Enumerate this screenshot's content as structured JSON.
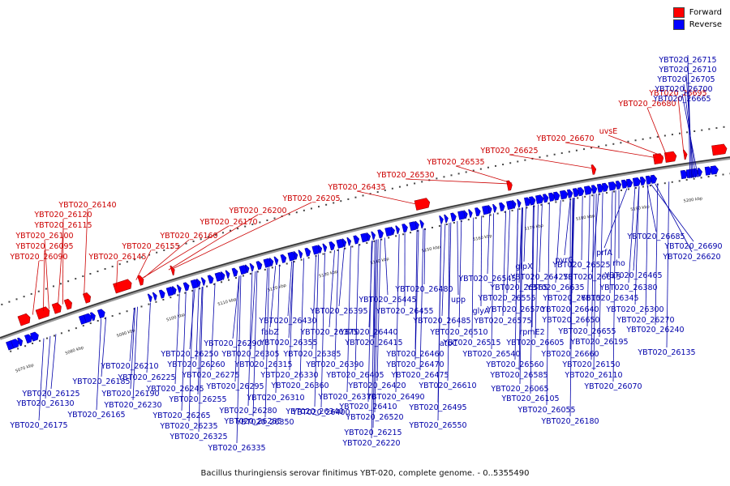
{
  "legend": {
    "forward": {
      "label": "Forward",
      "color": "#ff0000"
    },
    "reverse": {
      "label": "Reverse",
      "color": "#0000ff"
    }
  },
  "caption": "Bacillus thuringiensis serovar finitimus YBT-020, complete genome. - 0..5355490",
  "ticks": [
    "5070 kbp",
    "5080 kbp",
    "5090 kbp",
    "5100 kbp",
    "5110 kbp",
    "5120 kbp",
    "5130 kbp",
    "5140 kbp",
    "5150 kbp",
    "5160 kbp",
    "5170 kbp",
    "5180 kbp",
    "5190 kbp",
    "5200 kbp"
  ],
  "forward_labels": [
    "YBT020_26140",
    "YBT020_26120",
    "YBT020_26115",
    "YBT020_26100",
    "YBT020_26095",
    "YBT020_26090",
    "YBT020_26145",
    "YBT020_26155",
    "YBT020_26160",
    "YBT020_26170",
    "YBT020_26200",
    "YBT020_26205",
    "YBT020_26435",
    "YBT020_26530",
    "YBT020_26535",
    "YBT020_26625",
    "YBT020_26670",
    "uvsE",
    "YBT020_26680",
    "YBT020_26695"
  ],
  "reverse_labels": [
    "YBT020_26715",
    "YBT020_26710",
    "YBT020_26705",
    "YBT020_26700",
    "YBT020_26665",
    "YBT020_26685",
    "YBT020_26690",
    "YBT020_26620",
    "prfA",
    "pyrG",
    "rho",
    "YBT020_26525",
    "glpX",
    "YBT020_26645",
    "YBT020_26465",
    "YBT020_26545",
    "YBT020_26425",
    "YBT020_26480",
    "YBT020_26565",
    "YBT020_26635",
    "YBT020_26380",
    "YBT020_26445",
    "upp",
    "YBT020_26555",
    "YBT020_26615",
    "YBT020_26345",
    "YBT020_26395",
    "YBT020_26455",
    "glyA",
    "YBT020_26570",
    "YBT020_26640",
    "YBT020_26300",
    "YBT020_26430",
    "YBT020_26485",
    "YBT020_26575",
    "YBT020_26650",
    "YBT020_26270",
    "fabZ",
    "YBT020_26375",
    "YBT020_26440",
    "YBT020_26510",
    "rpmE2",
    "YBT020_26655",
    "YBT020_26240",
    "YBT020_26290",
    "YBT020_26355",
    "YBT020_26415",
    "atpC",
    "YBT020_26515",
    "YBT020_26605",
    "YBT020_26195",
    "YBT020_26250",
    "YBT020_26305",
    "YBT020_26385",
    "YBT020_26460",
    "YBT020_26540",
    "YBT020_26660",
    "YBT020_26135",
    "YBT020_26210",
    "YBT020_26260",
    "YBT020_26315",
    "YBT020_26390",
    "YBT020_26470",
    "YBT020_26560",
    "YBT020_26150",
    "YBT020_26225",
    "YBT020_26275",
    "YBT020_26330",
    "YBT020_26405",
    "YBT020_26475",
    "YBT020_26585",
    "YBT020_26110",
    "YBT020_26185",
    "YBT020_26245",
    "YBT020_26295",
    "YBT020_26360",
    "YBT020_26420",
    "YBT020_26610",
    "YBT020_26070",
    "YBT020_26125",
    "YBT020_26190",
    "YBT020_26255",
    "YBT020_26310",
    "YBT020_26370",
    "YBT020_26490",
    "YBT020_26065",
    "YBT020_26130",
    "YBT020_26230",
    "YBT020_26280",
    "YBT020_26340",
    "YBT020_26410",
    "YBT020_26495",
    "YBT020_26105",
    "YBT020_26165",
    "YBT020_26265",
    "YBT020_26350",
    "YBT020_26520",
    "YBT020_26055",
    "YBT020_26175",
    "YBT020_26235",
    "YBT020_26285",
    "YBT020_26400",
    "YBT020_26550",
    "YBT020_26180",
    "YBT020_26325",
    "YBT020_26215",
    "YBT020_26335",
    "YBT020_26220"
  ]
}
